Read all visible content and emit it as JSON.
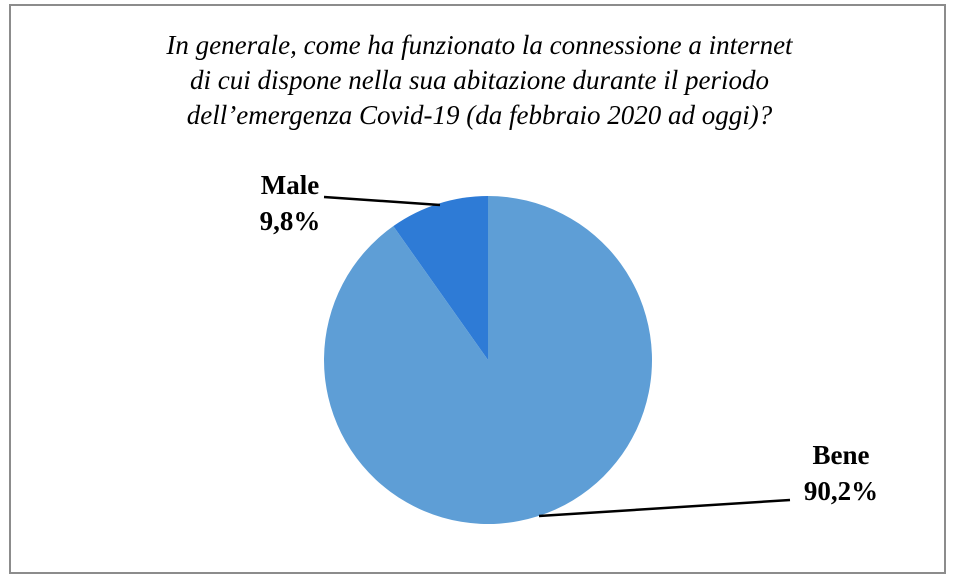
{
  "chart_data": {
    "type": "pie",
    "title_lines": [
      "In generale, come ha funzionato la connessione a internet",
      "di cui dispone nella sua abitazione durante il periodo",
      "dell’emergenza Covid-19 (da febbraio 2020 ad oggi)?"
    ],
    "slices": [
      {
        "label": "Male",
        "value": 9.8,
        "value_label": "9,8%",
        "color": "#2E7BD6"
      },
      {
        "label": "Bene",
        "value": 90.2,
        "value_label": "90,2%",
        "color": "#5E9ED6"
      }
    ],
    "legend": "none",
    "data_labels": "outside-with-leader-lines"
  }
}
